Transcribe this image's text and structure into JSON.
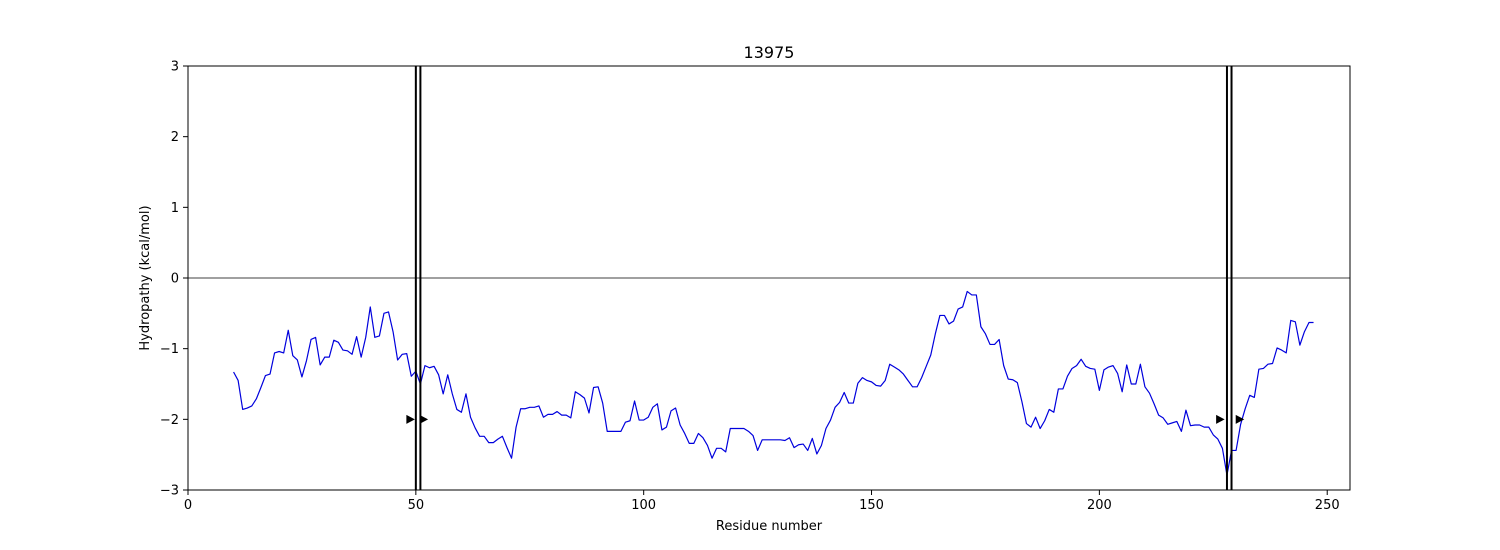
{
  "chart_data": {
    "type": "line",
    "title": "13975",
    "xlabel": "Residue number",
    "ylabel": "Hydropathy (kcal/mol)",
    "xlim": [
      0,
      255
    ],
    "ylim": [
      -3,
      3
    ],
    "xticks": [
      0,
      50,
      100,
      150,
      200,
      250
    ],
    "yticks": [
      -3,
      -2,
      -1,
      0,
      1,
      2,
      3
    ],
    "xtick_labels": [
      "0",
      "50",
      "100",
      "150",
      "200",
      "250"
    ],
    "ytick_labels": [
      "−3",
      "−2",
      "−1",
      "0",
      "1",
      "2",
      "3"
    ],
    "zero_line": 0,
    "line_color": "#0000dd",
    "series": [
      {
        "x_start": 10,
        "values": [
          -1.33,
          -1.45,
          -1.86,
          -1.84,
          -1.81,
          -1.71,
          -1.55,
          -1.38,
          -1.36,
          -1.06,
          -1.04,
          -1.06,
          -0.74,
          -1.1,
          -1.16,
          -1.4,
          -1.17,
          -0.87,
          -0.84,
          -1.23,
          -1.12,
          -1.12,
          -0.88,
          -0.91,
          -1.02,
          -1.03,
          -1.08,
          -0.83,
          -1.12,
          -0.84,
          -0.41,
          -0.84,
          -0.82,
          -0.5,
          -0.48,
          -0.76,
          -1.16,
          -1.08,
          -1.07,
          -1.39,
          -1.32,
          -1.5,
          -1.24,
          -1.27,
          -1.25,
          -1.37,
          -1.64,
          -1.37,
          -1.64,
          -1.86,
          -1.9,
          -1.64,
          -1.97,
          -2.12,
          -2.24,
          -2.24,
          -2.33,
          -2.33,
          -2.28,
          -2.24,
          -2.4,
          -2.55,
          -2.11,
          -1.85,
          -1.85,
          -1.83,
          -1.83,
          -1.81,
          -1.97,
          -1.93,
          -1.93,
          -1.89,
          -1.94,
          -1.94,
          -1.98,
          -1.61,
          -1.65,
          -1.7,
          -1.91,
          -1.55,
          -1.54,
          -1.77,
          -2.17,
          -2.17,
          -2.17,
          -2.17,
          -2.04,
          -2.02,
          -1.74,
          -2.01,
          -2.01,
          -1.97,
          -1.83,
          -1.78,
          -2.15,
          -2.11,
          -1.88,
          -1.84,
          -2.08,
          -2.2,
          -2.34,
          -2.34,
          -2.2,
          -2.26,
          -2.37,
          -2.55,
          -2.41,
          -2.41,
          -2.46,
          -2.13,
          -2.13,
          -2.13,
          -2.13,
          -2.17,
          -2.23,
          -2.44,
          -2.29,
          -2.29,
          -2.29,
          -2.29,
          -2.29,
          -2.3,
          -2.26,
          -2.4,
          -2.36,
          -2.35,
          -2.44,
          -2.27,
          -2.49,
          -2.37,
          -2.13,
          -2.01,
          -1.83,
          -1.76,
          -1.62,
          -1.77,
          -1.77,
          -1.49,
          -1.41,
          -1.45,
          -1.47,
          -1.52,
          -1.53,
          -1.45,
          -1.22,
          -1.26,
          -1.3,
          -1.36,
          -1.45,
          -1.54,
          -1.54,
          -1.41,
          -1.25,
          -1.09,
          -0.79,
          -0.53,
          -0.53,
          -0.65,
          -0.61,
          -0.44,
          -0.41,
          -0.19,
          -0.24,
          -0.24,
          -0.69,
          -0.79,
          -0.94,
          -0.94,
          -0.87,
          -1.24,
          -1.43,
          -1.44,
          -1.48,
          -1.75,
          -2.06,
          -2.11,
          -1.97,
          -2.13,
          -2.02,
          -1.86,
          -1.9,
          -1.57,
          -1.57,
          -1.39,
          -1.28,
          -1.24,
          -1.15,
          -1.25,
          -1.28,
          -1.29,
          -1.59,
          -1.3,
          -1.26,
          -1.24,
          -1.35,
          -1.61,
          -1.23,
          -1.5,
          -1.5,
          -1.22,
          -1.54,
          -1.63,
          -1.78,
          -1.94,
          -1.98,
          -2.07,
          -2.05,
          -2.03,
          -2.17,
          -1.87,
          -2.09,
          -2.08,
          -2.08,
          -2.11,
          -2.11,
          -2.22,
          -2.28,
          -2.41,
          -2.79,
          -2.44,
          -2.44,
          -2.07,
          -1.85,
          -1.66,
          -1.69,
          -1.29,
          -1.28,
          -1.22,
          -1.21,
          -0.99,
          -1.02,
          -1.06,
          -0.6,
          -0.62,
          -0.95,
          -0.76,
          -0.63,
          -0.63
        ]
      }
    ],
    "tm_boundaries": [
      {
        "x1": 50,
        "x2": 51,
        "arrow_y": -2.0,
        "arrow_x": [
          48.8,
          51.7
        ]
      },
      {
        "x1": 228,
        "x2": 229,
        "arrow_y": -2.0,
        "arrow_x": [
          226.5,
          230.8
        ]
      }
    ]
  }
}
